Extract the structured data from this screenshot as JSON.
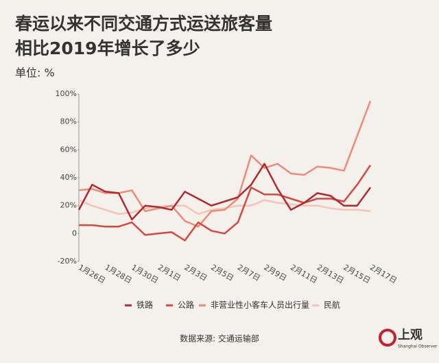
{
  "chart_data": {
    "type": "line",
    "title": [
      "春运以来不同交通方式运送旅客量",
      "相比2019年增长了多少"
    ],
    "unit_label": "单位: %",
    "source": "数据来源: 交通运输部",
    "categories": [
      "1月26日",
      null,
      "1月28日",
      null,
      "1月30日",
      null,
      "2月1日",
      null,
      "2月3日",
      null,
      "2月5日",
      null,
      "2月7日",
      null,
      "2月9日",
      null,
      "2月11日",
      null,
      "2月13日",
      null,
      "2月15日",
      null,
      "2月17日"
    ],
    "series": [
      {
        "name": "铁路",
        "color": "#b3262c",
        "values": [
          17,
          35,
          30,
          29,
          10,
          20,
          19,
          17,
          30,
          25,
          20,
          23,
          26,
          35,
          50,
          32,
          17,
          22,
          29,
          27,
          20,
          20,
          33
        ]
      },
      {
        "name": "公路",
        "color": "#d4483d",
        "values": [
          6,
          6,
          5,
          5,
          8,
          -1,
          0,
          1,
          -5,
          8,
          2,
          0,
          8,
          33,
          28,
          28,
          25,
          22,
          25,
          25,
          23,
          35,
          49
        ]
      },
      {
        "name": "非营业性小客车人员出行量",
        "color": "#ee8a78",
        "values": [
          31,
          32,
          29,
          29,
          31,
          16,
          18,
          20,
          9,
          5,
          16,
          17,
          25,
          56,
          47,
          50,
          43,
          42,
          48,
          47,
          45,
          70,
          95
        ]
      },
      {
        "name": "民航",
        "color": "#f6c3b6",
        "values": [
          24,
          20,
          17,
          14,
          15,
          18,
          19,
          20,
          20,
          14,
          17,
          18,
          20,
          20,
          24,
          22,
          21,
          20,
          20,
          18,
          17,
          17,
          16
        ]
      }
    ],
    "ylim": [
      -20,
      100
    ],
    "yticks": [
      {
        "value": -20,
        "label": "-20%"
      },
      0,
      {
        "value": 20,
        "label": "20%"
      },
      {
        "value": 40,
        "label": "40%"
      },
      {
        "value": 60,
        "label": "60%"
      },
      {
        "value": 80,
        "label": "80%"
      },
      {
        "value": 100,
        "label": "100%"
      }
    ]
  },
  "brand": {
    "name": "上观",
    "subtitle": "Shanghai Observer"
  }
}
